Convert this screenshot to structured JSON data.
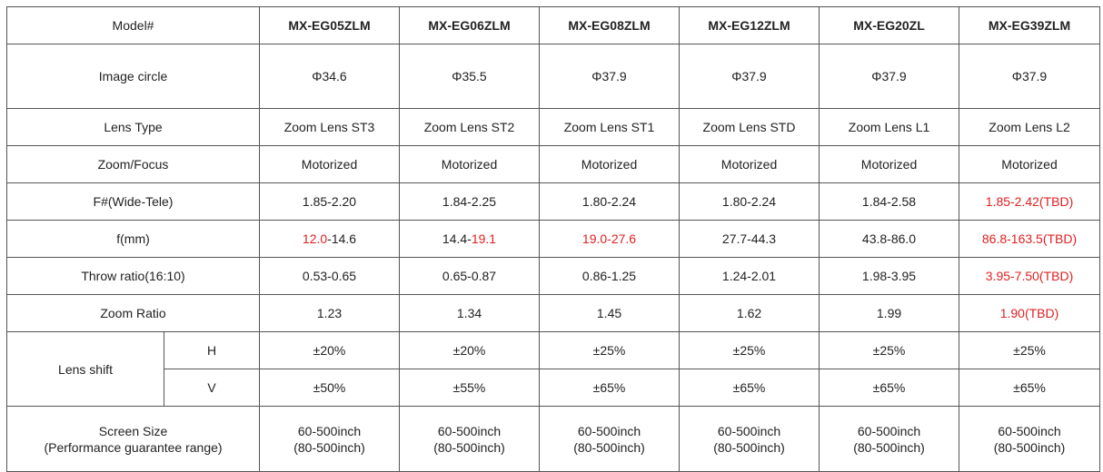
{
  "header": {
    "label": "Model#",
    "models": [
      "MX-EG05ZLM",
      "MX-EG06ZLM",
      "MX-EG08ZLM",
      "MX-EG12ZLM",
      "MX-EG20ZL",
      "MX-EG39ZLM"
    ]
  },
  "rows": {
    "image_circle": {
      "label": "Image circle",
      "values": [
        "Φ34.6",
        "Φ35.5",
        "Φ37.9",
        "Φ37.9",
        "Φ37.9",
        "Φ37.9"
      ]
    },
    "lens_type": {
      "label": "Lens Type",
      "values": [
        "Zoom Lens ST3",
        "Zoom Lens ST2",
        "Zoom Lens ST1",
        "Zoom Lens STD",
        "Zoom Lens L1",
        "Zoom Lens L2"
      ]
    },
    "zoom_focus": {
      "label": "Zoom/Focus",
      "values": [
        "Motorized",
        "Motorized",
        "Motorized",
        "Motorized",
        "Motorized",
        "Motorized"
      ]
    },
    "f_number": {
      "label": "F#(Wide-Tele)",
      "values": [
        "1.85-2.20",
        "1.84-2.25",
        "1.80-2.24",
        "1.80-2.24",
        "1.84-2.58",
        "1.85-2.42(TBD)"
      ]
    },
    "focal_length": {
      "label": "f(mm)",
      "cells": [
        [
          {
            "t": "12.0",
            "red": true
          },
          {
            "t": "-14.6",
            "red": false
          }
        ],
        [
          {
            "t": "14.4-",
            "red": false
          },
          {
            "t": "19.1",
            "red": true
          }
        ],
        [
          {
            "t": "19.0-27.6",
            "red": true
          }
        ],
        [
          {
            "t": "27.7-44.3",
            "red": false
          }
        ],
        [
          {
            "t": "43.8-86.0",
            "red": false
          }
        ],
        [
          {
            "t": "86.8-163.5(TBD)",
            "red": true
          }
        ]
      ]
    },
    "throw_ratio": {
      "label": "Throw ratio(16:10)",
      "values": [
        "0.53-0.65",
        "0.65-0.87",
        "0.86-1.25",
        "1.24-2.01",
        "1.98-3.95",
        "3.95-7.50(TBD)"
      ]
    },
    "zoom_ratio": {
      "label": "Zoom Ratio",
      "values": [
        "1.23",
        "1.34",
        "1.45",
        "1.62",
        "1.99",
        "1.90(TBD)"
      ]
    },
    "lens_shift": {
      "label": "Lens shift",
      "h": {
        "label": "H",
        "values": [
          "±20%",
          "±20%",
          "±25%",
          "±25%",
          "±25%",
          "±25%"
        ]
      },
      "v": {
        "label": "V",
        "values": [
          "±50%",
          "±55%",
          "±65%",
          "±65%",
          "±65%",
          "±65%"
        ]
      }
    },
    "screen_size": {
      "label_line1": "Screen Size",
      "label_line2": "(Performance guarantee range)",
      "line1": [
        "60-500inch",
        "60-500inch",
        "60-500inch",
        "60-500inch",
        "60-500inch",
        "60-500inch"
      ],
      "line2": [
        "(80-500inch)",
        "(80-500inch)",
        "(80-500inch)",
        "(80-500inch)",
        "(80-500inch)",
        "(80-500inch)"
      ]
    }
  },
  "colors": {
    "highlight": "#e02020",
    "border": "#555555"
  },
  "red_cells": {
    "f_number": [
      5
    ],
    "throw_ratio": [
      5
    ],
    "zoom_ratio": [
      5
    ]
  }
}
